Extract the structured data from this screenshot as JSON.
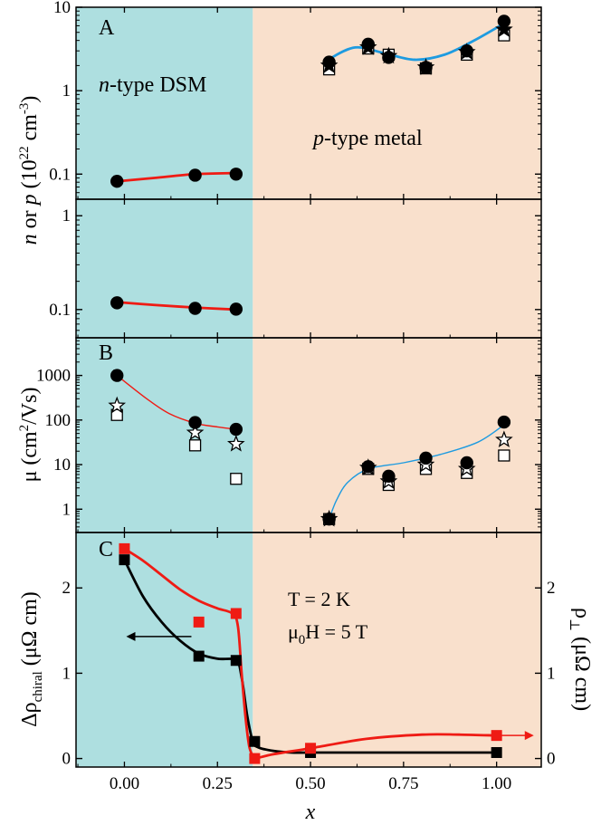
{
  "colors": {
    "ntype_bg": "#aedfe0",
    "ptype_bg": "#f9e0cc",
    "red": "#ef1b14",
    "blue": "#1e9be0",
    "black": "#000000"
  },
  "figure": {
    "x_axis_label": "x",
    "y_label_A": {
      "italic1": "n",
      "mid": " or ",
      "italic2": "p",
      "rest": " (10",
      "sup1": "22",
      "rest2": " cm",
      "sup2": "-3",
      "end": ")"
    },
    "y_label_B": {
      "main": "μ (cm",
      "sup": "2",
      "end": "/Vs)"
    },
    "y_label_C": {
      "main": "Δρ",
      "sub": "chiral",
      "end": " (μΩ cm)"
    },
    "y_label_C_right": {
      "main": "ρ",
      "sub": "⊥",
      "end": " (μΩ cm)"
    },
    "panel_labels": [
      "A",
      "B",
      "C"
    ],
    "region_left": {
      "italic": "n",
      "rest": "-type DSM"
    },
    "region_right": {
      "italic": "p",
      "rest": "-type metal"
    },
    "conditions": {
      "line1": "T = 2 K",
      "line2_a": "μ",
      "line2_sub": "0",
      "line2_b": "H = 5 T"
    }
  },
  "chart_data": [
    {
      "type": "scatter",
      "title": "A (upper)",
      "yscale": "log",
      "xlim": [
        -0.13,
        1.12
      ],
      "ylim": [
        0.05,
        10
      ],
      "yticks": [
        {
          "v": 0.1,
          "label": "0.1"
        },
        {
          "v": 1,
          "label": "1"
        },
        {
          "v": 10,
          "label": "10"
        }
      ],
      "series": [
        {
          "name": "n (circles)",
          "marker": "circle",
          "x": [
            -0.02,
            0.19,
            0.3
          ],
          "values": [
            0.082,
            0.097,
            0.1
          ]
        },
        {
          "name": "p (circles)",
          "marker": "circle",
          "x": [
            0.55,
            0.655,
            0.71,
            0.81,
            0.92,
            1.02
          ],
          "values": [
            2.2,
            3.6,
            2.5,
            1.9,
            3.0,
            6.8
          ]
        },
        {
          "name": "p (stars)",
          "marker": "star",
          "x": [
            0.55,
            0.655,
            0.71,
            0.81,
            0.92,
            1.02
          ],
          "values": [
            2.0,
            3.3,
            2.6,
            1.9,
            2.9,
            5.4
          ]
        },
        {
          "name": "p (squares)",
          "marker": "square",
          "x": [
            0.55,
            0.655,
            0.71,
            0.81,
            0.92,
            1.02
          ],
          "values": [
            1.8,
            3.2,
            2.7,
            1.85,
            2.7,
            4.6
          ]
        }
      ],
      "fits": [
        {
          "color": "red",
          "x": [
            -0.02,
            0.08,
            0.19,
            0.3
          ],
          "values": [
            0.082,
            0.09,
            0.1,
            0.103
          ]
        },
        {
          "color": "blue",
          "x": [
            0.55,
            0.62,
            0.7,
            0.78,
            0.86,
            0.94,
            1.02
          ],
          "values": [
            2.4,
            3.3,
            2.8,
            2.35,
            2.7,
            4.0,
            6.4
          ]
        }
      ]
    },
    {
      "type": "scatter",
      "title": "A (lower)",
      "yscale": "log",
      "xlim": [
        -0.13,
        1.12
      ],
      "ylim": [
        0.05,
        1.5
      ],
      "yticks": [
        {
          "v": 0.1,
          "label": "0.1"
        },
        {
          "v": 1,
          "label": "1"
        }
      ],
      "series": [
        {
          "name": "n (circles)",
          "marker": "circle",
          "x": [
            -0.02,
            0.19,
            0.3
          ],
          "values": [
            0.118,
            0.103,
            0.101
          ]
        }
      ],
      "fits": [
        {
          "color": "red",
          "x": [
            -0.02,
            0.08,
            0.19,
            0.3
          ],
          "values": [
            0.12,
            0.112,
            0.105,
            0.1
          ]
        }
      ]
    },
    {
      "type": "scatter",
      "title": "B",
      "yscale": "log",
      "xlim": [
        -0.13,
        1.12
      ],
      "ylim": [
        0.3,
        7000
      ],
      "yticks": [
        {
          "v": 1,
          "label": "1"
        },
        {
          "v": 10,
          "label": "10"
        },
        {
          "v": 100,
          "label": "100"
        },
        {
          "v": 1000,
          "label": "1000"
        }
      ],
      "series": [
        {
          "name": "circles",
          "marker": "circle",
          "x": [
            -0.02,
            0.19,
            0.3,
            0.55,
            0.655,
            0.71,
            0.81,
            0.92,
            1.02
          ],
          "values": [
            1000,
            88,
            62,
            0.6,
            9,
            5.5,
            14,
            11,
            90
          ]
        },
        {
          "name": "stars",
          "marker": "star",
          "x": [
            -0.02,
            0.19,
            0.3,
            0.55,
            0.655,
            0.71,
            0.81,
            0.92,
            1.02
          ],
          "values": [
            210,
            52,
            29,
            0.6,
            8.5,
            4.2,
            10,
            8,
            36
          ]
        },
        {
          "name": "squares",
          "marker": "square",
          "x": [
            -0.02,
            0.19,
            0.3,
            0.55,
            0.655,
            0.71,
            0.81,
            0.92,
            1.02
          ],
          "values": [
            130,
            27,
            4.8,
            0.6,
            8,
            3.5,
            8,
            6.5,
            16
          ]
        }
      ],
      "fits": [
        {
          "color": "red",
          "x": [
            -0.02,
            0.06,
            0.12,
            0.19,
            0.25,
            0.3
          ],
          "values": [
            1000,
            300,
            140,
            85,
            70,
            62
          ]
        },
        {
          "color": "blue",
          "x": [
            0.55,
            0.57,
            0.6,
            0.655,
            0.75,
            0.85,
            0.95,
            1.02
          ],
          "values": [
            0.6,
            1.6,
            4.0,
            8.0,
            11,
            17,
            32,
            78
          ]
        }
      ]
    },
    {
      "type": "scatter",
      "title": "C",
      "yscale": "linear",
      "xlim": [
        -0.13,
        1.12
      ],
      "ylim": [
        -0.1,
        2.65
      ],
      "yticks": [
        {
          "v": 0,
          "label": "0"
        },
        {
          "v": 1,
          "label": "1"
        },
        {
          "v": 2,
          "label": "2"
        }
      ],
      "xticks": [
        {
          "v": 0,
          "label": "0.00"
        },
        {
          "v": 0.25,
          "label": "0.25"
        },
        {
          "v": 0.5,
          "label": "0.50"
        },
        {
          "v": 0.75,
          "label": "0.75"
        },
        {
          "v": 1.0,
          "label": "1.00"
        }
      ],
      "right_axis": {
        "label": "ρ⊥ (μΩ cm)",
        "ticks": [
          {
            "v": 0,
            "label": "0"
          },
          {
            "v": 1,
            "label": "1"
          },
          {
            "v": 2,
            "label": "2"
          }
        ]
      },
      "series": [
        {
          "name": "Δρ chiral",
          "marker": "square",
          "color": "black",
          "x": [
            0,
            0.2,
            0.3,
            0.35,
            0.5,
            1.0
          ],
          "values": [
            2.33,
            1.2,
            1.15,
            0.2,
            0.07,
            0.07
          ]
        },
        {
          "name": "ρ⊥",
          "marker": "square",
          "color": "red",
          "x": [
            0,
            0.2,
            0.3,
            0.35,
            0.5,
            1.0
          ],
          "values": [
            2.46,
            1.6,
            1.7,
            0.0,
            0.12,
            0.27
          ]
        }
      ],
      "fits": [
        {
          "color": "black",
          "x": [
            0,
            0.05,
            0.1,
            0.15,
            0.2,
            0.25,
            0.3,
            0.315,
            0.33,
            0.345,
            0.36,
            0.4,
            0.45,
            0.5,
            0.75,
            1.0
          ],
          "values": [
            2.33,
            1.9,
            1.6,
            1.38,
            1.23,
            1.17,
            1.15,
            0.95,
            0.5,
            0.2,
            0.13,
            0.09,
            0.07,
            0.07,
            0.07,
            0.07
          ]
        },
        {
          "color": "red",
          "x": [
            0,
            0.05,
            0.1,
            0.15,
            0.2,
            0.25,
            0.29,
            0.305,
            0.315,
            0.325,
            0.335,
            0.345,
            0.35,
            0.4,
            0.5,
            0.65,
            0.8,
            0.9,
            1.0
          ],
          "values": [
            2.46,
            2.32,
            2.15,
            1.98,
            1.85,
            1.76,
            1.7,
            1.55,
            1.0,
            0.5,
            0.15,
            0.03,
            0.0,
            0.05,
            0.12,
            0.23,
            0.28,
            0.28,
            0.27
          ]
        }
      ],
      "annotations": [
        "left arrow pointing to left axis (black)",
        "right arrow pointing to right axis (red)"
      ]
    }
  ]
}
